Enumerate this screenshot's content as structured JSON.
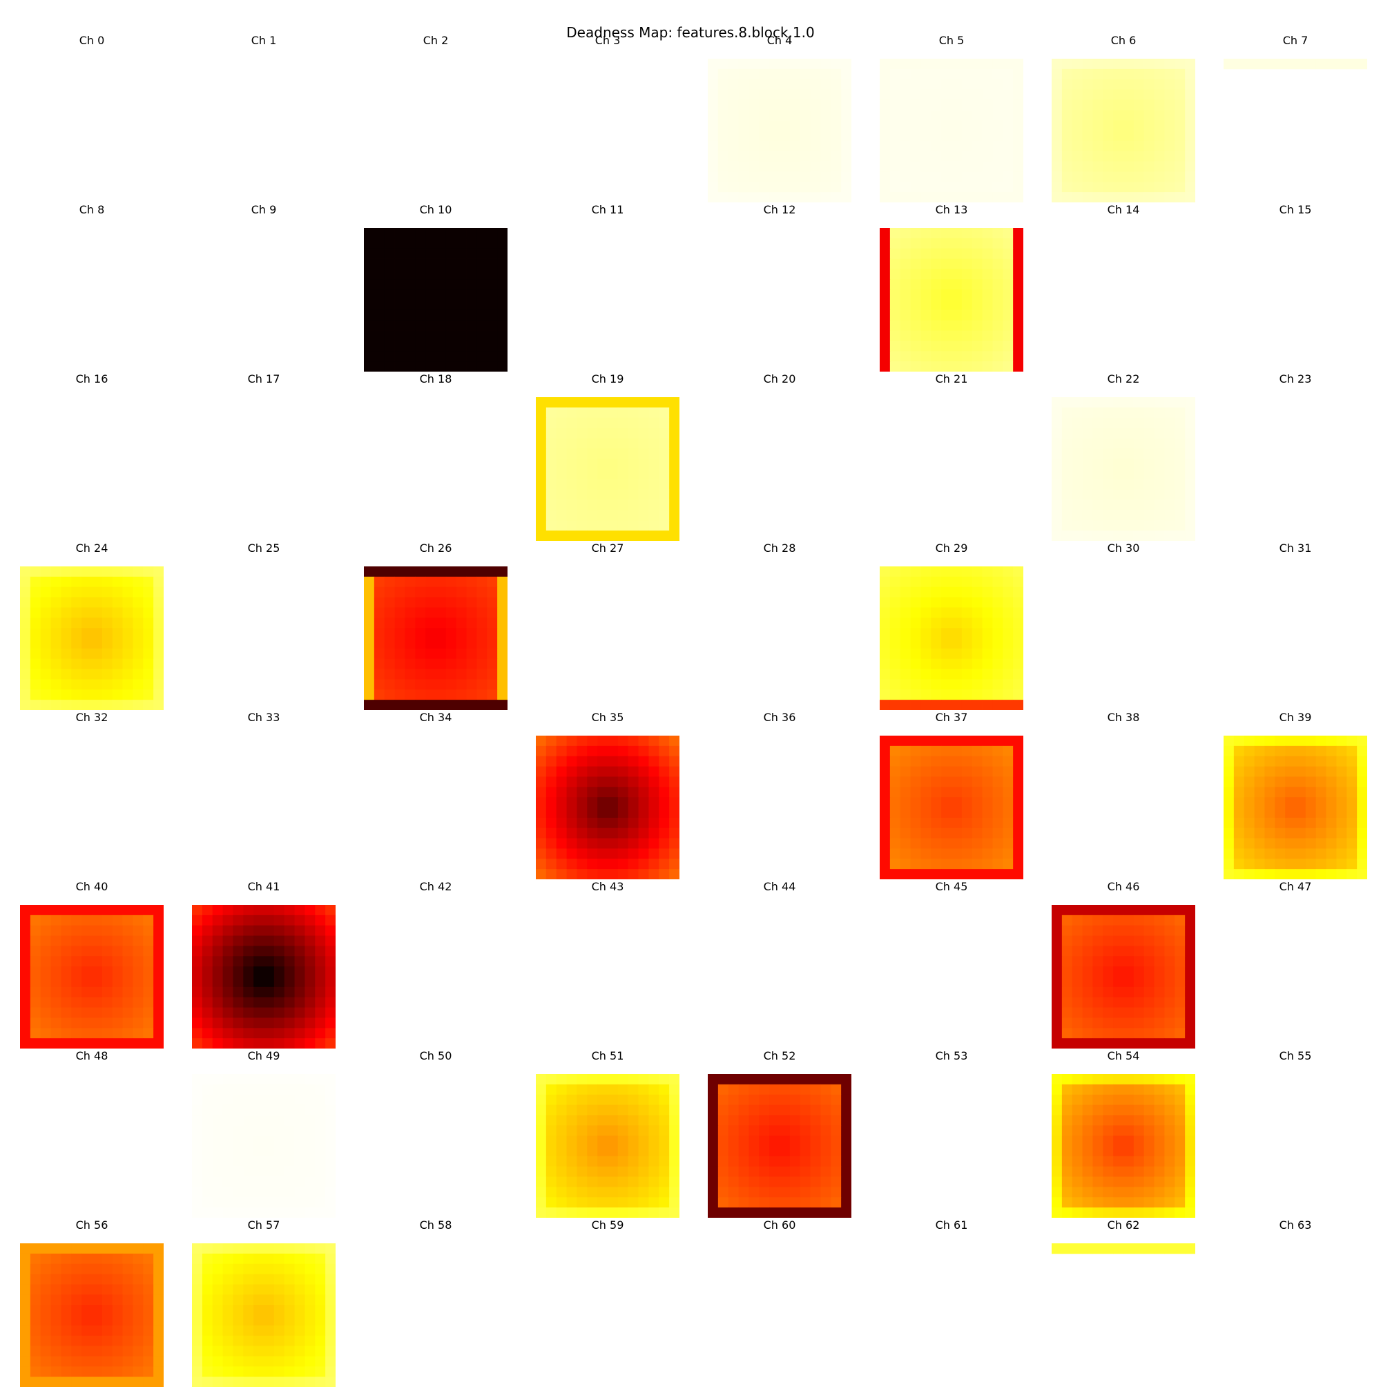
{
  "chart_data": {
    "type": "heatmap",
    "title": "Deadness Map: features.8.block.1.0",
    "colormap": "hot",
    "channels": [
      {
        "label": "Ch 0",
        "pattern": "blank",
        "level": 0
      },
      {
        "label": "Ch 1",
        "pattern": "blank",
        "level": 0
      },
      {
        "label": "Ch 2",
        "pattern": "blank",
        "level": 0
      },
      {
        "label": "Ch 3",
        "pattern": "blank",
        "level": 0
      },
      {
        "label": "Ch 4",
        "pattern": "center",
        "level": 0.03
      },
      {
        "label": "Ch 5",
        "pattern": "frame",
        "level": 0.02
      },
      {
        "label": "Ch 6",
        "pattern": "center",
        "level": 0.12
      },
      {
        "label": "Ch 7",
        "pattern": "topstrip",
        "level": 0.03
      },
      {
        "label": "Ch 8",
        "pattern": "blank",
        "level": 0
      },
      {
        "label": "Ch 9",
        "pattern": "blank",
        "level": 0
      },
      {
        "label": "Ch 10",
        "pattern": "solid",
        "level": 1.0
      },
      {
        "label": "Ch 11",
        "pattern": "blank",
        "level": 0
      },
      {
        "label": "Ch 12",
        "pattern": "blank",
        "level": 0
      },
      {
        "label": "Ch 13",
        "pattern": "sides",
        "level": 0.2,
        "edge": 0.65
      },
      {
        "label": "Ch 14",
        "pattern": "blank",
        "level": 0
      },
      {
        "label": "Ch 15",
        "pattern": "blank",
        "level": 0
      },
      {
        "label": "Ch 16",
        "pattern": "blank",
        "level": 0
      },
      {
        "label": "Ch 17",
        "pattern": "blank",
        "level": 0
      },
      {
        "label": "Ch 18",
        "pattern": "blank",
        "level": 0
      },
      {
        "label": "Ch 19",
        "pattern": "frame",
        "level": 0.12,
        "edge": 0.3
      },
      {
        "label": "Ch 20",
        "pattern": "blank",
        "level": 0
      },
      {
        "label": "Ch 21",
        "pattern": "blank",
        "level": 0
      },
      {
        "label": "Ch 22",
        "pattern": "center",
        "level": 0.04
      },
      {
        "label": "Ch 23",
        "pattern": "blank",
        "level": 0
      },
      {
        "label": "Ch 24",
        "pattern": "center",
        "level": 0.32
      },
      {
        "label": "Ch 25",
        "pattern": "blank",
        "level": 0
      },
      {
        "label": "Ch 26",
        "pattern": "tbdark",
        "level": 0.62,
        "edge": 0.9
      },
      {
        "label": "Ch 27",
        "pattern": "blank",
        "level": 0
      },
      {
        "label": "Ch 28",
        "pattern": "blank",
        "level": 0
      },
      {
        "label": "Ch 29",
        "pattern": "bottomorange",
        "level": 0.3,
        "edge": 0.55
      },
      {
        "label": "Ch 30",
        "pattern": "blank",
        "level": 0
      },
      {
        "label": "Ch 31",
        "pattern": "blank",
        "level": 0
      },
      {
        "label": "Ch 32",
        "pattern": "blank",
        "level": 0
      },
      {
        "label": "Ch 33",
        "pattern": "blank",
        "level": 0
      },
      {
        "label": "Ch 34",
        "pattern": "blank",
        "level": 0
      },
      {
        "label": "Ch 35",
        "pattern": "centerdark",
        "level": 0.78
      },
      {
        "label": "Ch 36",
        "pattern": "blank",
        "level": 0
      },
      {
        "label": "Ch 37",
        "pattern": "frame",
        "level": 0.52,
        "edge": 0.62
      },
      {
        "label": "Ch 38",
        "pattern": "blank",
        "level": 0
      },
      {
        "label": "Ch 39",
        "pattern": "center",
        "level": 0.45
      },
      {
        "label": "Ch 40",
        "pattern": "frame",
        "level": 0.55,
        "edge": 0.62
      },
      {
        "label": "Ch 41",
        "pattern": "centerdark",
        "level": 0.92
      },
      {
        "label": "Ch 42",
        "pattern": "blank",
        "level": 0
      },
      {
        "label": "Ch 43",
        "pattern": "blank",
        "level": 0
      },
      {
        "label": "Ch 44",
        "pattern": "blank",
        "level": 0
      },
      {
        "label": "Ch 45",
        "pattern": "blank",
        "level": 0
      },
      {
        "label": "Ch 46",
        "pattern": "frame",
        "level": 0.58,
        "edge": 0.72
      },
      {
        "label": "Ch 47",
        "pattern": "blank",
        "level": 0
      },
      {
        "label": "Ch 48",
        "pattern": "blank",
        "level": 0
      },
      {
        "label": "Ch 49",
        "pattern": "center",
        "level": 0.01
      },
      {
        "label": "Ch 50",
        "pattern": "blank",
        "level": 0
      },
      {
        "label": "Ch 51",
        "pattern": "center",
        "level": 0.38
      },
      {
        "label": "Ch 52",
        "pattern": "frame",
        "level": 0.58,
        "edge": 0.85
      },
      {
        "label": "Ch 53",
        "pattern": "blank",
        "level": 0
      },
      {
        "label": "Ch 54",
        "pattern": "center",
        "level": 0.5
      },
      {
        "label": "Ch 55",
        "pattern": "blank",
        "level": 0
      },
      {
        "label": "Ch 56",
        "pattern": "frame",
        "level": 0.55,
        "edge": 0.4
      },
      {
        "label": "Ch 57",
        "pattern": "center",
        "level": 0.32
      },
      {
        "label": "Ch 58",
        "pattern": "blank",
        "level": 0
      },
      {
        "label": "Ch 59",
        "pattern": "blank",
        "level": 0
      },
      {
        "label": "Ch 60",
        "pattern": "blank",
        "level": 0
      },
      {
        "label": "Ch 61",
        "pattern": "blank",
        "level": 0
      },
      {
        "label": "Ch 62",
        "pattern": "topstrip",
        "level": 0.2
      },
      {
        "label": "Ch 63",
        "pattern": "blank",
        "level": 0
      }
    ]
  }
}
